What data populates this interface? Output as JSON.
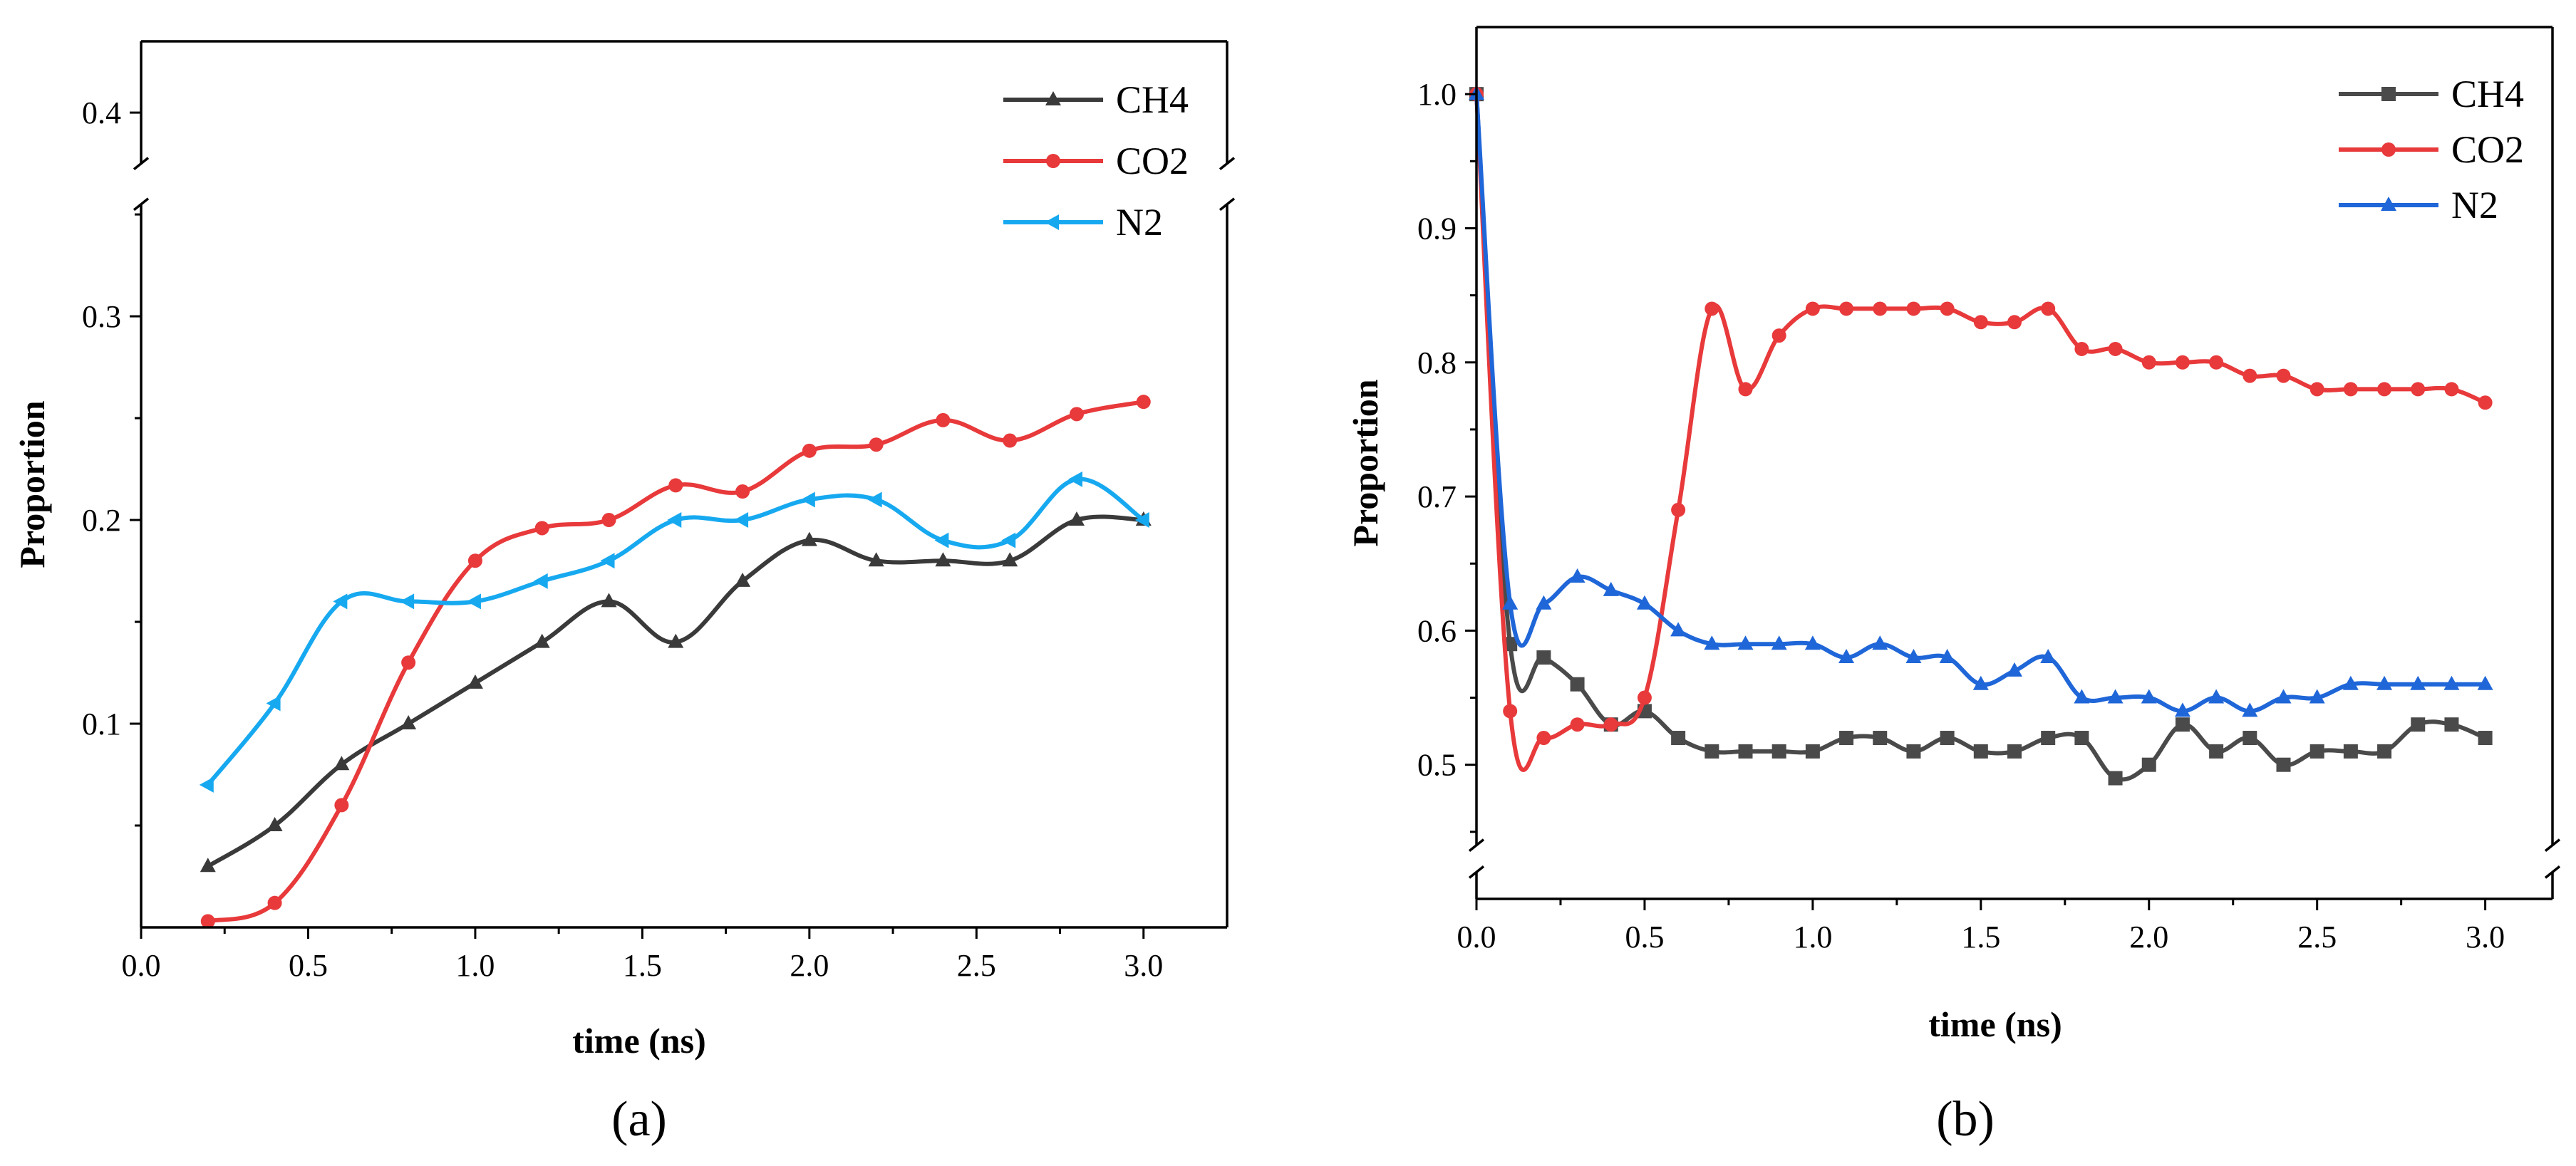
{
  "chart_data": [
    {
      "type": "line",
      "panel_label": "(a)",
      "title": "",
      "xlabel": "time (ns)",
      "ylabel": "Proportion",
      "xlim": [
        0.0,
        3.25
      ],
      "ylim": [
        0.0,
        0.435
      ],
      "y_axis_break": [
        0.355,
        0.375
      ],
      "y_axis_break_shown_at": 0.4,
      "xticks": [
        0.0,
        0.5,
        1.0,
        1.5,
        2.0,
        2.5,
        3.0
      ],
      "xtick_labels": [
        "0.0",
        "0.5",
        "1.0",
        "1.5",
        "2.0",
        "2.5",
        "3.0"
      ],
      "yticks": [
        0.1,
        0.2,
        0.3,
        0.4
      ],
      "ytick_labels": [
        "0.1",
        "0.2",
        "0.3",
        "0.4"
      ],
      "legend_position": "top-right",
      "series": [
        {
          "name": "CH4",
          "color": "#3a3a3a",
          "marker": "triangle-up",
          "x": [
            0.2,
            0.4,
            0.6,
            0.8,
            1.0,
            1.2,
            1.4,
            1.6,
            1.8,
            2.0,
            2.2,
            2.4,
            2.6,
            2.8,
            3.0
          ],
          "y": [
            0.03,
            0.05,
            0.08,
            0.1,
            0.12,
            0.14,
            0.16,
            0.14,
            0.17,
            0.19,
            0.18,
            0.18,
            0.18,
            0.2,
            0.2
          ]
        },
        {
          "name": "CO2",
          "color": "#e8393b",
          "marker": "circle",
          "x": [
            0.2,
            0.4,
            0.6,
            0.8,
            1.0,
            1.2,
            1.4,
            1.6,
            1.8,
            2.0,
            2.2,
            2.4,
            2.6,
            2.8,
            3.0
          ],
          "y": [
            0.003,
            0.012,
            0.06,
            0.13,
            0.18,
            0.196,
            0.2,
            0.217,
            0.214,
            0.234,
            0.237,
            0.249,
            0.239,
            0.252,
            0.258
          ]
        },
        {
          "name": "N2",
          "color": "#17a9f0",
          "marker": "triangle-left",
          "x": [
            0.2,
            0.4,
            0.6,
            0.8,
            1.0,
            1.2,
            1.4,
            1.6,
            1.8,
            2.0,
            2.2,
            2.4,
            2.6,
            2.8,
            3.0
          ],
          "y": [
            0.07,
            0.11,
            0.16,
            0.16,
            0.16,
            0.17,
            0.18,
            0.2,
            0.2,
            0.21,
            0.21,
            0.19,
            0.19,
            0.22,
            0.2
          ]
        }
      ]
    },
    {
      "type": "line",
      "panel_label": "(b)",
      "title": "",
      "xlabel": "time (ns)",
      "ylabel": "Proportion",
      "xlim": [
        0.0,
        3.2
      ],
      "ylim": [
        0.4,
        1.05
      ],
      "y_axis_break": [
        0.42,
        0.44
      ],
      "xticks": [
        0.0,
        0.5,
        1.0,
        1.5,
        2.0,
        2.5,
        3.0
      ],
      "xtick_labels": [
        "0.0",
        "0.5",
        "1.0",
        "1.5",
        "2.0",
        "2.5",
        "3.0"
      ],
      "yticks": [
        0.5,
        0.6,
        0.7,
        0.8,
        0.9,
        1.0
      ],
      "ytick_labels": [
        "0.5",
        "0.6",
        "0.7",
        "0.8",
        "0.9",
        "1.0"
      ],
      "legend_position": "top-right",
      "series": [
        {
          "name": "CH4",
          "color": "#4a4a4a",
          "marker": "square",
          "x": [
            0.0,
            0.1,
            0.2,
            0.3,
            0.4,
            0.5,
            0.6,
            0.7,
            0.8,
            0.9,
            1.0,
            1.1,
            1.2,
            1.3,
            1.4,
            1.5,
            1.6,
            1.7,
            1.8,
            1.9,
            2.0,
            2.1,
            2.2,
            2.3,
            2.4,
            2.5,
            2.6,
            2.7,
            2.8,
            2.9,
            3.0
          ],
          "y": [
            1.0,
            0.59,
            0.58,
            0.56,
            0.53,
            0.54,
            0.52,
            0.51,
            0.51,
            0.51,
            0.51,
            0.52,
            0.52,
            0.51,
            0.52,
            0.51,
            0.51,
            0.52,
            0.52,
            0.49,
            0.5,
            0.53,
            0.51,
            0.52,
            0.5,
            0.51,
            0.51,
            0.51,
            0.53,
            0.53,
            0.52
          ]
        },
        {
          "name": "CO2",
          "color": "#e8393b",
          "marker": "circle",
          "x": [
            0.0,
            0.1,
            0.2,
            0.3,
            0.4,
            0.5,
            0.6,
            0.7,
            0.8,
            0.9,
            1.0,
            1.1,
            1.2,
            1.3,
            1.4,
            1.5,
            1.6,
            1.7,
            1.8,
            1.9,
            2.0,
            2.1,
            2.2,
            2.3,
            2.4,
            2.5,
            2.6,
            2.7,
            2.8,
            2.9,
            3.0
          ],
          "y": [
            1.0,
            0.54,
            0.52,
            0.53,
            0.53,
            0.55,
            0.69,
            0.84,
            0.78,
            0.82,
            0.84,
            0.84,
            0.84,
            0.84,
            0.84,
            0.83,
            0.83,
            0.84,
            0.81,
            0.81,
            0.8,
            0.8,
            0.8,
            0.79,
            0.79,
            0.78,
            0.78,
            0.78,
            0.78,
            0.78,
            0.77
          ]
        },
        {
          "name": "N2",
          "color": "#1f66d8",
          "marker": "triangle-up",
          "x": [
            0.0,
            0.1,
            0.2,
            0.3,
            0.4,
            0.5,
            0.6,
            0.7,
            0.8,
            0.9,
            1.0,
            1.1,
            1.2,
            1.3,
            1.4,
            1.5,
            1.6,
            1.7,
            1.8,
            1.9,
            2.0,
            2.1,
            2.2,
            2.3,
            2.4,
            2.5,
            2.6,
            2.7,
            2.8,
            2.9,
            3.0
          ],
          "y": [
            1.0,
            0.62,
            0.62,
            0.64,
            0.63,
            0.62,
            0.6,
            0.59,
            0.59,
            0.59,
            0.59,
            0.58,
            0.59,
            0.58,
            0.58,
            0.56,
            0.57,
            0.58,
            0.55,
            0.55,
            0.55,
            0.54,
            0.55,
            0.54,
            0.55,
            0.55,
            0.56,
            0.56,
            0.56,
            0.56,
            0.56
          ]
        }
      ]
    }
  ]
}
